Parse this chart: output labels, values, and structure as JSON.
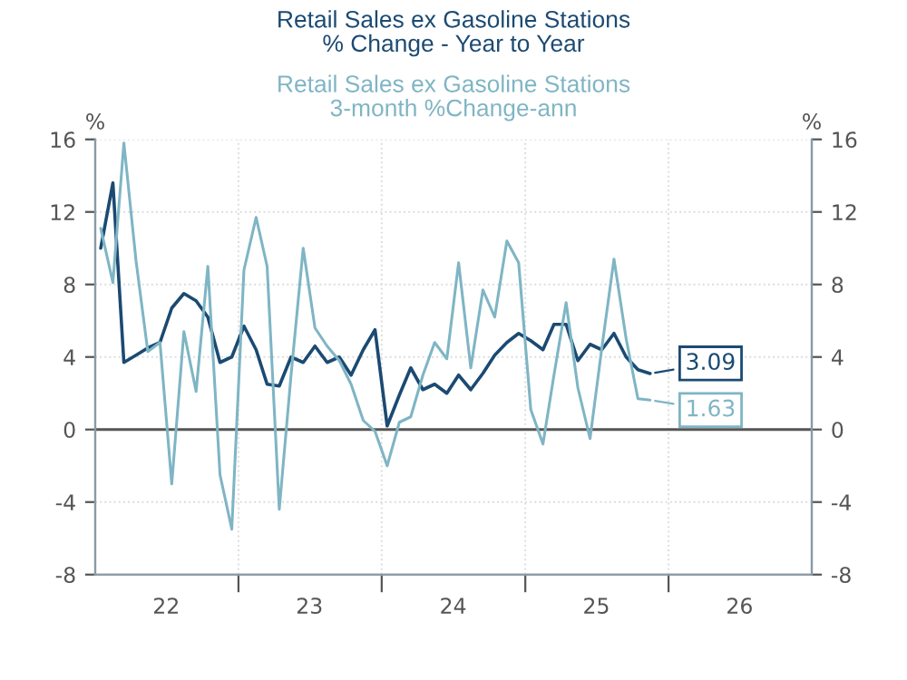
{
  "chart_data": {
    "type": "line",
    "x": [
      "2022-01-15",
      "2022-02-15",
      "2022-03-15",
      "2022-04-15",
      "2022-05-15",
      "2022-06-15",
      "2022-07-15",
      "2022-08-15",
      "2022-09-15",
      "2022-10-15",
      "2022-11-15",
      "2022-12-15",
      "2023-01-15",
      "2023-02-15",
      "2023-03-15",
      "2023-04-15",
      "2023-05-15",
      "2023-06-15",
      "2023-07-15",
      "2023-08-15",
      "2023-09-15",
      "2023-10-15",
      "2023-11-15",
      "2023-12-15",
      "2024-01-15",
      "2024-02-15",
      "2024-03-15",
      "2024-04-15",
      "2024-05-15",
      "2024-06-15",
      "2024-07-15",
      "2024-08-15",
      "2024-09-15",
      "2024-10-15",
      "2024-11-15",
      "2024-12-15",
      "2025-01-15",
      "2025-02-15",
      "2025-03-15",
      "2025-04-15",
      "2025-05-15",
      "2025-06-15",
      "2025-07-15",
      "2025-08-15",
      "2025-09-15",
      "2025-10-15",
      "2025-11-15"
    ],
    "series": [
      {
        "name": "Retail Sales ex Gasoline Stations\n% Change - Year to Year",
        "color": "#1b4a72",
        "values": [
          10.0,
          13.6,
          3.7,
          4.1,
          4.5,
          4.8,
          6.7,
          7.5,
          7.1,
          6.2,
          3.7,
          4.0,
          5.7,
          4.4,
          2.5,
          2.4,
          4.0,
          3.7,
          4.6,
          3.7,
          4.0,
          3.0,
          4.4,
          5.5,
          0.2,
          1.9,
          3.4,
          2.2,
          2.5,
          2.0,
          3.0,
          2.2,
          3.1,
          4.1,
          4.8,
          5.3,
          4.9,
          4.4,
          5.8,
          5.8,
          3.8,
          4.7,
          4.4,
          5.3,
          4.0,
          3.3,
          3.09
        ],
        "value_labels": [
          null,
          null,
          null,
          null,
          null,
          null,
          null,
          null,
          null,
          null,
          null,
          null,
          null,
          null,
          null,
          null,
          null,
          null,
          null,
          null,
          null,
          null,
          null,
          null,
          null,
          null,
          null,
          null,
          null,
          null,
          null,
          null,
          null,
          null,
          null,
          null,
          null,
          null,
          null,
          null,
          null,
          null,
          null,
          null,
          null,
          null,
          "3.09"
        ]
      },
      {
        "name": "Retail Sales ex Gasoline Stations\n3-month %Change-ann",
        "color": "#7fb5c4",
        "values": [
          11.1,
          8.1,
          15.8,
          9.3,
          4.3,
          4.8,
          -3.0,
          5.4,
          2.1,
          9.0,
          -2.5,
          -5.5,
          8.8,
          11.7,
          9.0,
          -4.4,
          3.0,
          10.0,
          5.6,
          4.6,
          3.8,
          2.5,
          0.5,
          -0.1,
          -2.0,
          0.4,
          0.7,
          3.0,
          4.8,
          3.9,
          9.2,
          3.4,
          7.7,
          6.2,
          10.4,
          9.2,
          1.1,
          -0.8,
          3.0,
          7.0,
          2.3,
          -0.5,
          4.5,
          9.4,
          5.0,
          1.7,
          1.63
        ],
        "value_labels": [
          null,
          null,
          null,
          null,
          null,
          null,
          null,
          null,
          null,
          null,
          null,
          null,
          null,
          null,
          null,
          null,
          null,
          null,
          null,
          null,
          null,
          null,
          null,
          null,
          null,
          null,
          null,
          null,
          null,
          null,
          null,
          null,
          null,
          null,
          null,
          null,
          null,
          null,
          null,
          null,
          null,
          null,
          null,
          null,
          null,
          null,
          "1.63"
        ]
      }
    ],
    "ylabel": "%",
    "y2label": "%",
    "xlim": [
      "2022-01-01",
      "2027-01-01"
    ],
    "xticks": [
      {
        "value": "2022-07-01",
        "label": "22"
      },
      {
        "value": "2023-01-01",
        "label": null
      },
      {
        "value": "2023-07-01",
        "label": "23"
      },
      {
        "value": "2024-01-01",
        "label": null
      },
      {
        "value": "2024-07-01",
        "label": "24"
      },
      {
        "value": "2025-01-01",
        "label": null
      },
      {
        "value": "2025-07-01",
        "label": "25"
      },
      {
        "value": "2026-01-01",
        "label": null
      },
      {
        "value": "2026-07-01",
        "label": "26"
      }
    ],
    "ylim": [
      -8,
      16
    ],
    "yticks": [
      -8,
      -4,
      0,
      4,
      8,
      12,
      16
    ],
    "y2lim": [
      -8,
      16
    ],
    "y2ticks": [
      -8,
      -4,
      0,
      4,
      8,
      12,
      16
    ],
    "ref_lines": [
      {
        "axis": "y",
        "value": 0,
        "color": "#555555"
      }
    ],
    "grid": true,
    "legend": "top",
    "marker": "none",
    "line_style": "solid"
  }
}
